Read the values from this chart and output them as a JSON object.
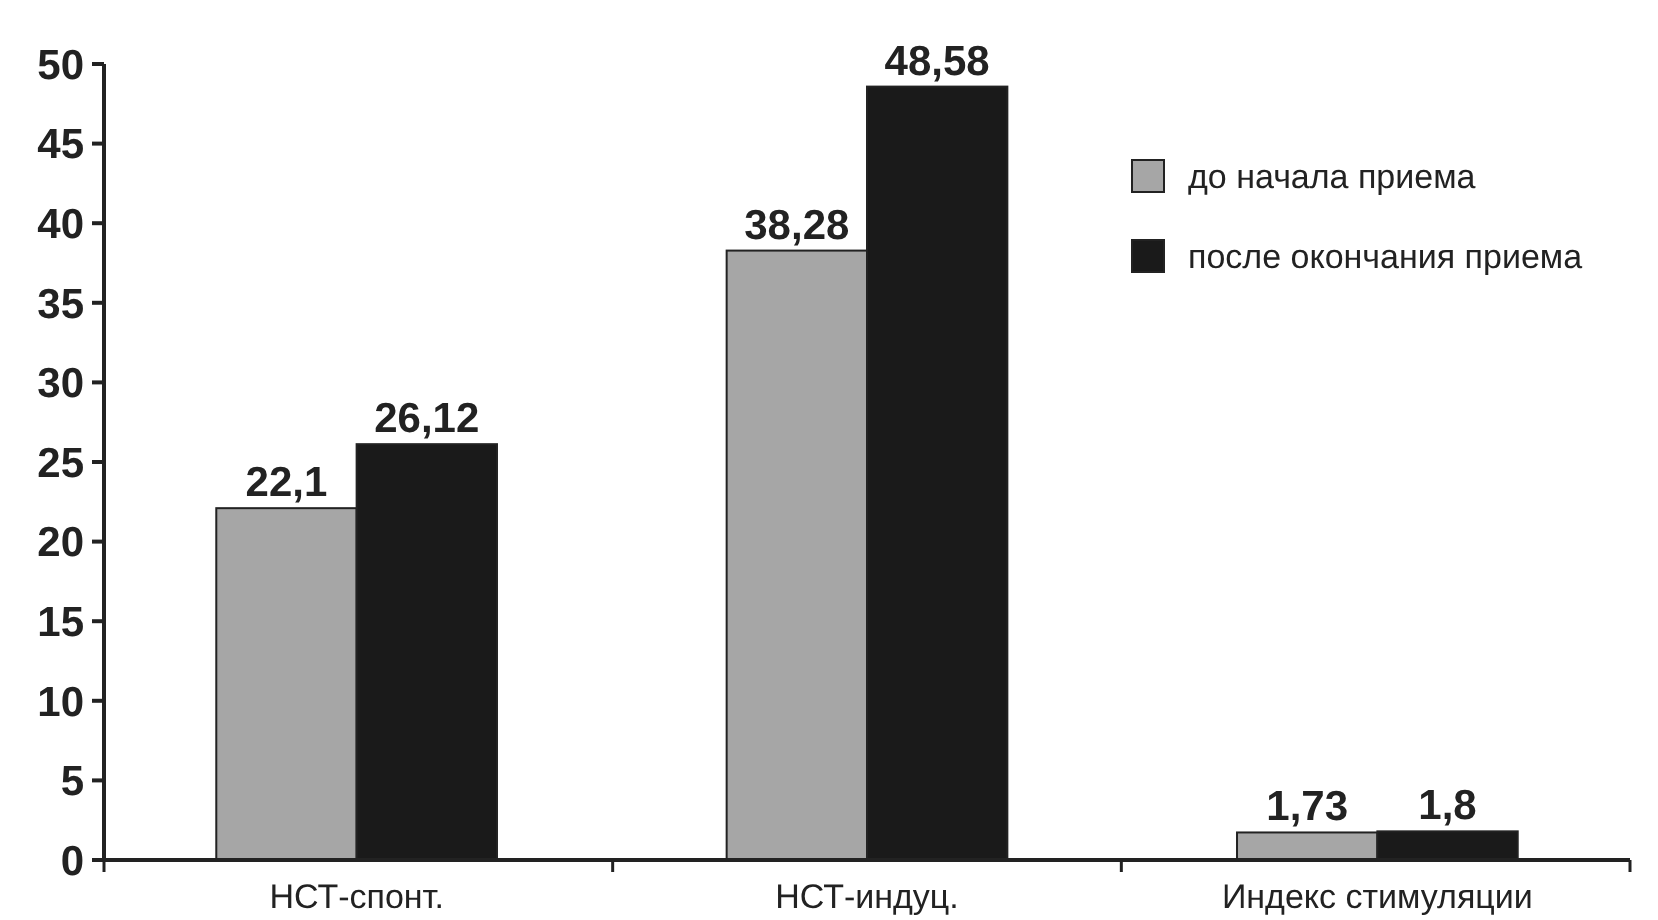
{
  "chart_data": {
    "type": "bar",
    "categories": [
      "НСТ-спонт.",
      "НСТ-индуц.",
      "Индекс стимуляции"
    ],
    "series": [
      {
        "name": "до начала приема",
        "color": "#a6a6a6",
        "values": [
          22.1,
          38.28,
          1.73
        ],
        "value_labels": [
          "22,1",
          "38,28",
          "1,73"
        ]
      },
      {
        "name": "после окончания приема",
        "color": "#1a1a1a",
        "values": [
          26.12,
          48.58,
          1.8
        ],
        "value_labels": [
          "26,12",
          "48,58",
          "1,8"
        ]
      }
    ],
    "ylim": [
      0,
      50
    ],
    "yticks": [
      0,
      5,
      10,
      15,
      20,
      25,
      30,
      35,
      40,
      45,
      50
    ],
    "grid": false,
    "legend": "top right"
  }
}
